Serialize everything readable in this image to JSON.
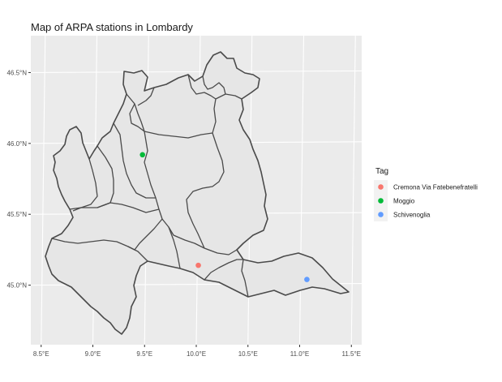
{
  "chart_data": {
    "type": "scatter",
    "title": "Map of ARPA stations in Lombardy",
    "xlabel": "",
    "ylabel": "",
    "xlim": [
      8.4,
      11.6
    ],
    "ylim": [
      44.58,
      46.76
    ],
    "x_ticks": [
      8.5,
      9.0,
      9.5,
      10.0,
      10.5,
      11.0,
      11.5
    ],
    "x_tick_labels": [
      "8.5°E",
      "9.0°E",
      "9.5°E",
      "10.0°E",
      "10.5°E",
      "11.0°E",
      "11.5°E"
    ],
    "y_ticks": [
      45.0,
      45.5,
      46.0,
      46.5
    ],
    "y_tick_labels": [
      "45.0°N",
      "45.5°N",
      "46.0°N",
      "46.5°N"
    ],
    "grid": true,
    "legend": {
      "title": "Tag",
      "position": "right",
      "entries": [
        {
          "label": "Cremona Via Fatebenefratelli",
          "color": "#F8766D"
        },
        {
          "label": "Moggio",
          "color": "#00BA38"
        },
        {
          "label": "Schivenoglia",
          "color": "#619CFF"
        }
      ]
    },
    "points": [
      {
        "name": "Cremona Via Fatebenefratelli",
        "x": 10.02,
        "y": 45.14
      },
      {
        "name": "Moggio",
        "x": 9.48,
        "y": 45.92
      },
      {
        "name": "Schivenoglia",
        "x": 11.07,
        "y": 45.04
      }
    ]
  },
  "colors": {
    "panel": "#EBEBEB",
    "grid": "#FFFFFF",
    "land": "#E6E6E6",
    "border": "#4A4A4A"
  }
}
